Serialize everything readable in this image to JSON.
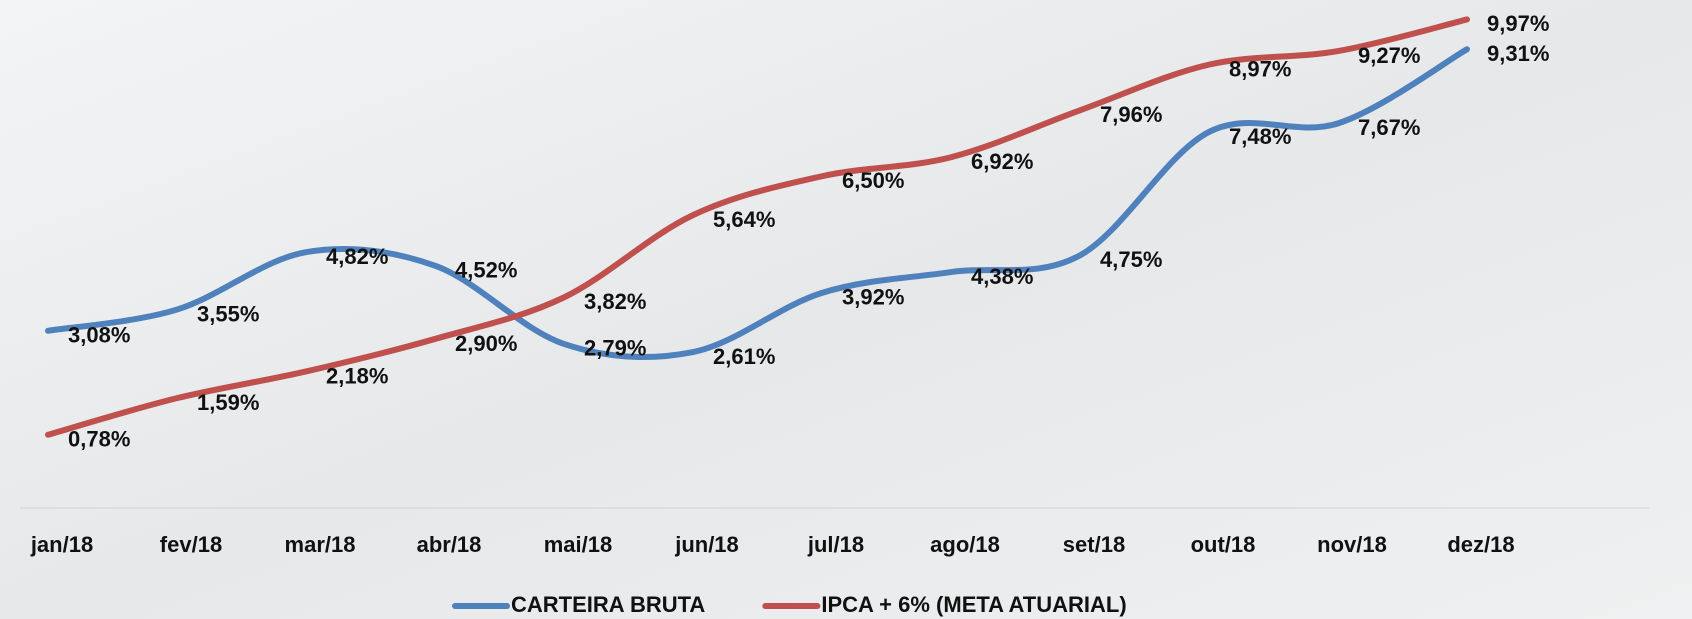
{
  "chart_data": {
    "type": "line",
    "categories": [
      "jan/18",
      "fev/18",
      "mar/18",
      "abr/18",
      "mai/18",
      "jun/18",
      "jul/18",
      "ago/18",
      "set/18",
      "out/18",
      "nov/18",
      "dez/18"
    ],
    "series": [
      {
        "name": "CARTEIRA BRUTA",
        "color": "#4f81bd",
        "values": [
          3.08,
          3.55,
          4.82,
          4.52,
          2.79,
          2.61,
          3.92,
          4.38,
          4.75,
          7.48,
          7.67,
          9.31
        ],
        "value_labels": [
          "3,08%",
          "3,55%",
          "4,82%",
          "4,52%",
          "2,79%",
          "2,61%",
          "3,92%",
          "4,38%",
          "4,75%",
          "7,48%",
          "7,67%",
          "9,31%"
        ]
      },
      {
        "name": "IPCA + 6% (META ATUARIAL)",
        "color": "#c0504d",
        "values": [
          0.78,
          1.59,
          2.18,
          2.9,
          3.82,
          5.64,
          6.5,
          6.92,
          7.96,
          8.97,
          9.27,
          9.97
        ],
        "value_labels": [
          "0,78%",
          "1,59%",
          "2,18%",
          "2,90%",
          "3,82%",
          "5,64%",
          "6,50%",
          "6,92%",
          "7,96%",
          "8,97%",
          "9,27%",
          "9,97%"
        ]
      }
    ],
    "ylim": [
      0,
      10.4
    ],
    "smooth": true,
    "legend": "bottom"
  }
}
